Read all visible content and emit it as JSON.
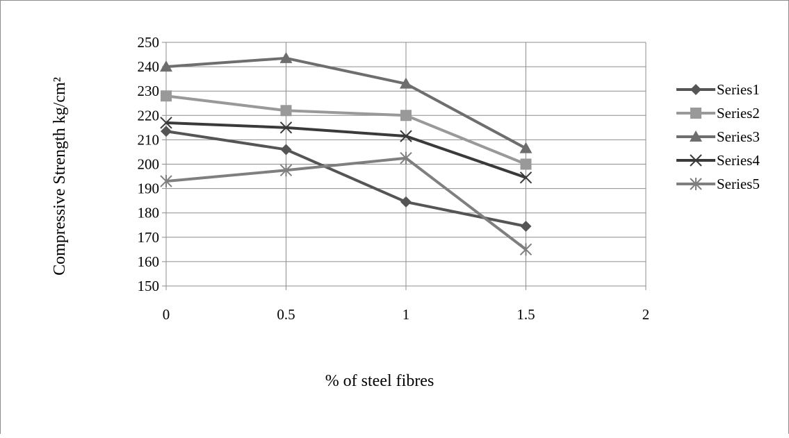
{
  "chart_data": {
    "type": "line",
    "title": "",
    "xlabel": "% of steel fibres",
    "ylabel": "Compressive Strength kg/cm²",
    "x_ticks": [
      "0",
      "0.5",
      "1",
      "1.5",
      "2"
    ],
    "y_ticks": [
      "150",
      "160",
      "170",
      "180",
      "190",
      "200",
      "210",
      "220",
      "230",
      "240",
      "250"
    ],
    "xlim": [
      0,
      2
    ],
    "ylim": [
      150,
      250
    ],
    "grid": true,
    "legend_position": "right",
    "x": [
      0,
      0.5,
      1,
      1.5
    ],
    "series": [
      {
        "name": "Series1",
        "values": [
          213.5,
          206,
          184.5,
          174.5
        ],
        "color": "#555555",
        "marker": "diamond"
      },
      {
        "name": "Series2",
        "values": [
          228,
          222,
          220,
          200
        ],
        "color": "#999999",
        "marker": "square"
      },
      {
        "name": "Series3",
        "values": [
          240,
          243.5,
          233,
          206.5
        ],
        "color": "#6e6e6e",
        "marker": "triangle"
      },
      {
        "name": "Series4",
        "values": [
          217,
          215,
          211.5,
          194.5
        ],
        "color": "#3a3a3a",
        "marker": "x"
      },
      {
        "name": "Series5",
        "values": [
          193,
          197.5,
          202.5,
          165
        ],
        "color": "#7f7f7f",
        "marker": "star"
      }
    ]
  }
}
